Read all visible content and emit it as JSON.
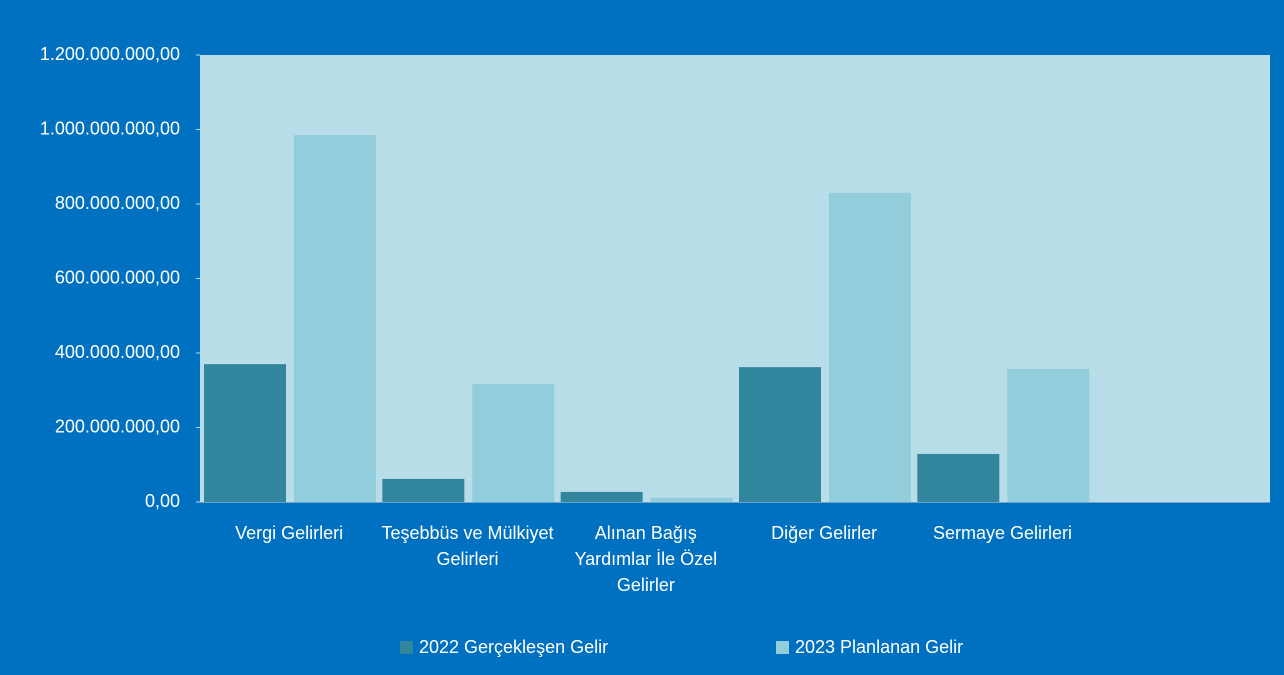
{
  "chart_data": {
    "type": "bar",
    "categories": [
      "Vergi Gelirleri",
      "Teşebbüs ve Mülkiyet Gelirleri",
      "Alınan Bağış Yardımlar İle Özel Gelirler",
      "Diğer Gelirler",
      "Sermaye Gelirleri",
      null
    ],
    "series": [
      {
        "name": "2022 Gerçekleşen Gelir",
        "color": "#31859c",
        "values": [
          370000000,
          62000000,
          27000000,
          362000000,
          129000000,
          null
        ]
      },
      {
        "name": "2023 Planlanan Gelir",
        "color": "#92cddc",
        "values": [
          985000000,
          317000000,
          11000000,
          830000000,
          357000000,
          null
        ]
      }
    ],
    "ylim": [
      0,
      1200000000
    ],
    "yticks": [
      {
        "value": 0,
        "label": "0,00"
      },
      {
        "value": 200000000,
        "label": "200.000.000,00"
      },
      {
        "value": 400000000,
        "label": "400.000.000,00"
      },
      {
        "value": 600000000,
        "label": "600.000.000,00"
      },
      {
        "value": 800000000,
        "label": "800.000.000,00"
      },
      {
        "value": 1000000000,
        "label": "1.000.000.000,00"
      },
      {
        "value": 1200000000,
        "label": "1.200.000.000,00"
      }
    ],
    "legend": "bottom"
  }
}
